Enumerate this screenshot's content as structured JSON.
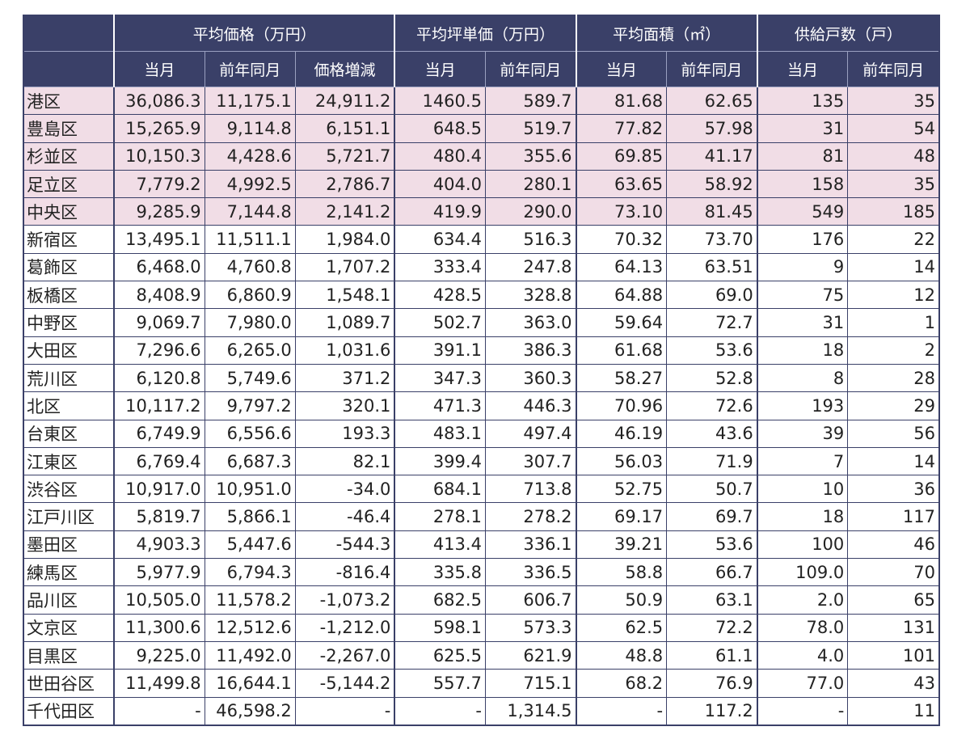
{
  "chart_data": {
    "type": "table",
    "header_groups": [
      {
        "label": "",
        "span": 1
      },
      {
        "label": "平均価格（万円）",
        "span": 3
      },
      {
        "label": "平均坪単価（万円）",
        "span": 2
      },
      {
        "label": "平均面積（㎡）",
        "span": 2
      },
      {
        "label": "供給戸数（戸）",
        "span": 2
      }
    ],
    "subheaders": [
      "",
      "当月",
      "前年同月",
      "価格増減",
      "当月",
      "前年同月",
      "当月",
      "前年同月",
      "当月",
      "前年同月"
    ],
    "highlight_color": "#f1dde6",
    "header_color": "#3a4068",
    "rows": [
      {
        "highlight": true,
        "cells": [
          "港区",
          "36,086.3",
          "11,175.1",
          "24,911.2",
          "1460.5",
          "589.7",
          "81.68",
          "62.65",
          "135",
          "35"
        ]
      },
      {
        "highlight": true,
        "cells": [
          "豊島区",
          "15,265.9",
          "9,114.8",
          "6,151.1",
          "648.5",
          "519.7",
          "77.82",
          "57.98",
          "31",
          "54"
        ]
      },
      {
        "highlight": true,
        "cells": [
          "杉並区",
          "10,150.3",
          "4,428.6",
          "5,721.7",
          "480.4",
          "355.6",
          "69.85",
          "41.17",
          "81",
          "48"
        ]
      },
      {
        "highlight": true,
        "cells": [
          "足立区",
          "7,779.2",
          "4,992.5",
          "2,786.7",
          "404.0",
          "280.1",
          "63.65",
          "58.92",
          "158",
          "35"
        ]
      },
      {
        "highlight": true,
        "cells": [
          "中央区",
          "9,285.9",
          "7,144.8",
          "2,141.2",
          "419.9",
          "290.0",
          "73.10",
          "81.45",
          "549",
          "185"
        ]
      },
      {
        "highlight": false,
        "cells": [
          "新宿区",
          "13,495.1",
          "11,511.1",
          "1,984.0",
          "634.4",
          "516.3",
          "70.32",
          "73.70",
          "176",
          "22"
        ]
      },
      {
        "highlight": false,
        "cells": [
          "葛飾区",
          "6,468.0",
          "4,760.8",
          "1,707.2",
          "333.4",
          "247.8",
          "64.13",
          "63.51",
          "9",
          "14"
        ]
      },
      {
        "highlight": false,
        "cells": [
          "板橋区",
          "8,408.9",
          "6,860.9",
          "1,548.1",
          "428.5",
          "328.8",
          "64.88",
          "69.0",
          "75",
          "12"
        ]
      },
      {
        "highlight": false,
        "cells": [
          "中野区",
          "9,069.7",
          "7,980.0",
          "1,089.7",
          "502.7",
          "363.0",
          "59.64",
          "72.7",
          "31",
          "1"
        ]
      },
      {
        "highlight": false,
        "cells": [
          "大田区",
          "7,296.6",
          "6,265.0",
          "1,031.6",
          "391.1",
          "386.3",
          "61.68",
          "53.6",
          "18",
          "2"
        ]
      },
      {
        "highlight": false,
        "cells": [
          "荒川区",
          "6,120.8",
          "5,749.6",
          "371.2",
          "347.3",
          "360.3",
          "58.27",
          "52.8",
          "8",
          "28"
        ]
      },
      {
        "highlight": false,
        "cells": [
          "北区",
          "10,117.2",
          "9,797.2",
          "320.1",
          "471.3",
          "446.3",
          "70.96",
          "72.6",
          "193",
          "29"
        ]
      },
      {
        "highlight": false,
        "cells": [
          "台東区",
          "6,749.9",
          "6,556.6",
          "193.3",
          "483.1",
          "497.4",
          "46.19",
          "43.6",
          "39",
          "56"
        ]
      },
      {
        "highlight": false,
        "cells": [
          "江東区",
          "6,769.4",
          "6,687.3",
          "82.1",
          "399.4",
          "307.7",
          "56.03",
          "71.9",
          "7",
          "14"
        ]
      },
      {
        "highlight": false,
        "cells": [
          "渋谷区",
          "10,917.0",
          "10,951.0",
          "-34.0",
          "684.1",
          "713.8",
          "52.75",
          "50.7",
          "10",
          "36"
        ]
      },
      {
        "highlight": false,
        "cells": [
          "江戸川区",
          "5,819.7",
          "5,866.1",
          "-46.4",
          "278.1",
          "278.2",
          "69.17",
          "69.7",
          "18",
          "117"
        ]
      },
      {
        "highlight": false,
        "cells": [
          "墨田区",
          "4,903.3",
          "5,447.6",
          "-544.3",
          "413.4",
          "336.1",
          "39.21",
          "53.6",
          "100",
          "46"
        ]
      },
      {
        "highlight": false,
        "cells": [
          "練馬区",
          "5,977.9",
          "6,794.3",
          "-816.4",
          "335.8",
          "336.5",
          "58.8",
          "66.7",
          "109.0",
          "70"
        ]
      },
      {
        "highlight": false,
        "cells": [
          "品川区",
          "10,505.0",
          "11,578.2",
          "-1,073.2",
          "682.5",
          "606.7",
          "50.9",
          "63.1",
          "2.0",
          "65"
        ]
      },
      {
        "highlight": false,
        "cells": [
          "文京区",
          "11,300.6",
          "12,512.6",
          "-1,212.0",
          "598.1",
          "573.3",
          "62.5",
          "72.2",
          "78.0",
          "131"
        ]
      },
      {
        "highlight": false,
        "cells": [
          "目黒区",
          "9,225.0",
          "11,492.0",
          "-2,267.0",
          "625.5",
          "621.9",
          "48.8",
          "61.1",
          "4.0",
          "101"
        ]
      },
      {
        "highlight": false,
        "cells": [
          "世田谷区",
          "11,499.8",
          "16,644.1",
          "-5,144.2",
          "557.7",
          "715.1",
          "68.2",
          "76.9",
          "77.0",
          "43"
        ]
      },
      {
        "highlight": false,
        "cells": [
          "千代田区",
          "-",
          "46,598.2",
          "-",
          "-",
          "1,314.5",
          "-",
          "117.2",
          "-",
          "11"
        ]
      }
    ]
  }
}
